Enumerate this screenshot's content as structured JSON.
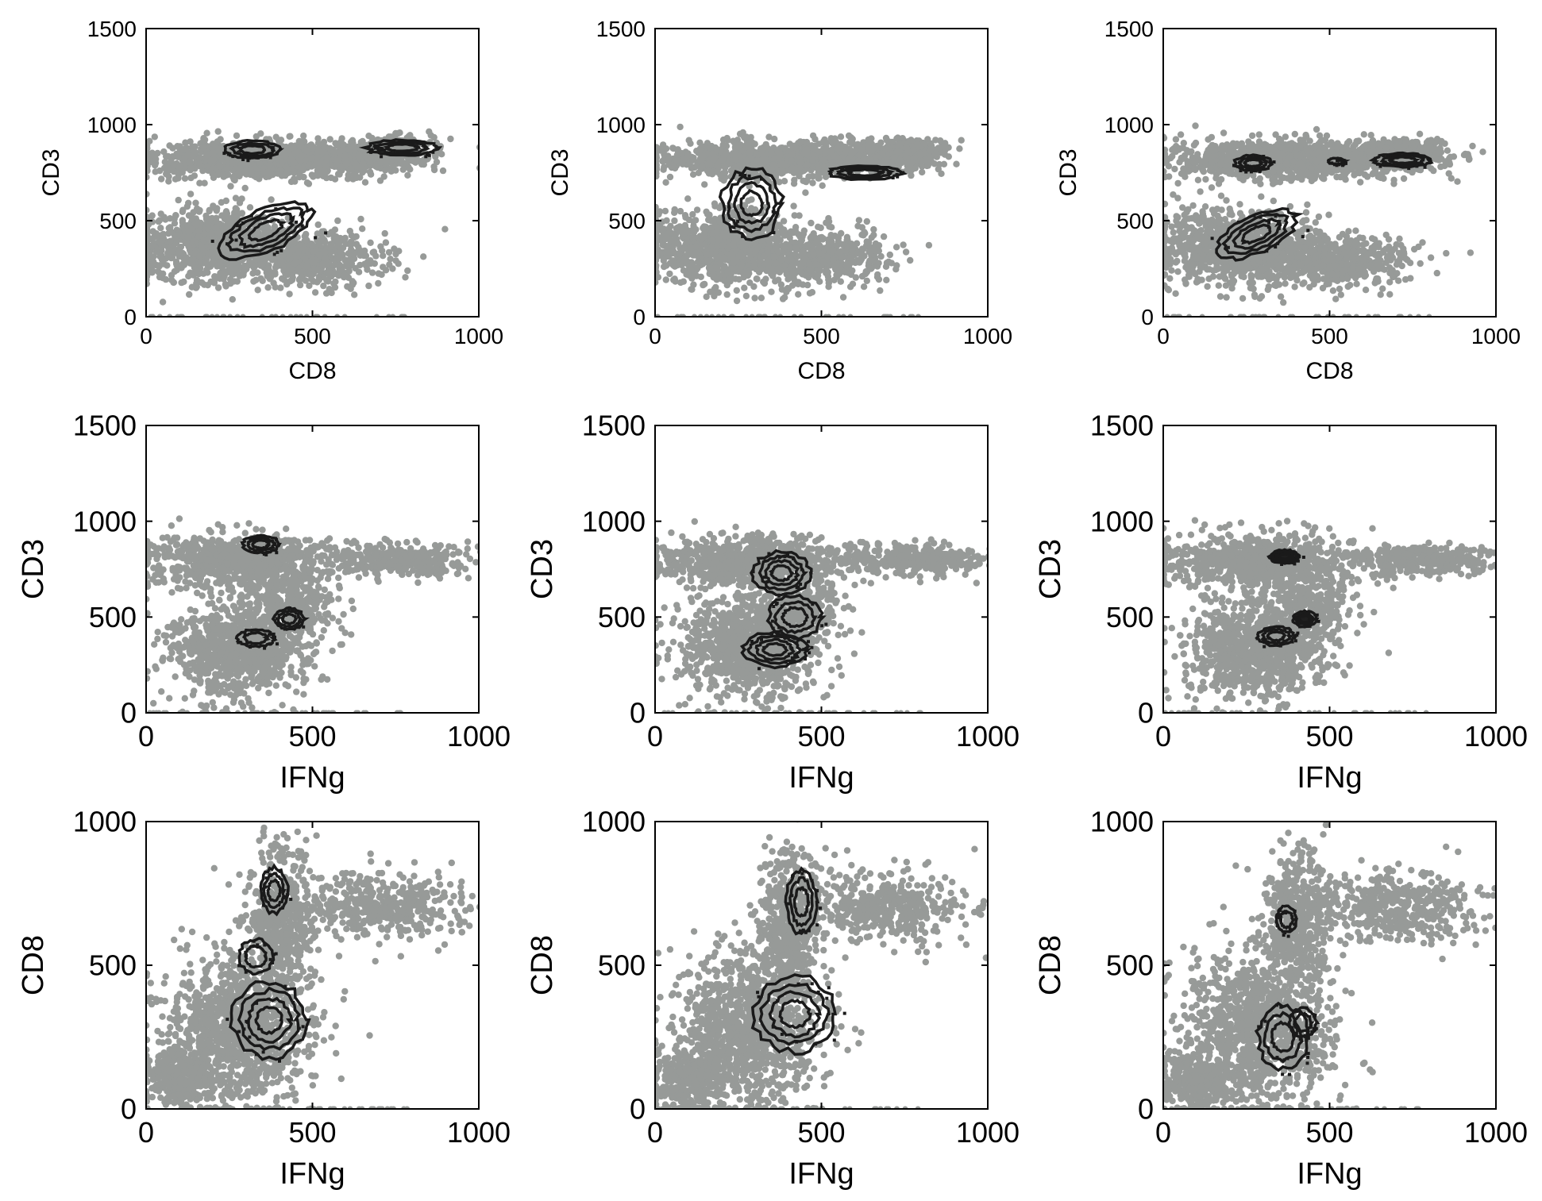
{
  "figure": {
    "background": "#ffffff",
    "point_color": "#979a98",
    "contour_color": "#1a1a1a"
  },
  "chart_data": [
    {
      "type": "scatter",
      "row": 0,
      "col": 0,
      "xlabel": "CD8",
      "ylabel": "CD3",
      "xlim": [
        0,
        1000
      ],
      "ylim": [
        0,
        1500
      ],
      "xticks": [
        "0",
        "500",
        "1000"
      ],
      "yticks": [
        "0",
        "500",
        "1000",
        "1500"
      ],
      "point_clouds": [
        {
          "cx": 300,
          "cy": 820,
          "rx": 270,
          "ry": 90,
          "n": 700
        },
        {
          "cx": 560,
          "cy": 820,
          "rx": 260,
          "ry": 80,
          "n": 500
        },
        {
          "cx": 200,
          "cy": 370,
          "rx": 210,
          "ry": 170,
          "n": 900
        },
        {
          "cx": 500,
          "cy": 300,
          "rx": 200,
          "ry": 130,
          "n": 500
        },
        {
          "cx": 740,
          "cy": 870,
          "rx": 110,
          "ry": 60,
          "n": 250
        }
      ],
      "contours": [
        {
          "cx": 320,
          "cy": 870,
          "rx": 85,
          "ry": 45,
          "levels": 3
        },
        {
          "cx": 770,
          "cy": 880,
          "rx": 105,
          "ry": 40,
          "levels": 3
        },
        {
          "cx": 360,
          "cy": 450,
          "rx": 150,
          "ry": 110,
          "levels": 4,
          "rot": -25
        }
      ]
    },
    {
      "type": "scatter",
      "row": 0,
      "col": 1,
      "xlabel": "CD8",
      "ylabel": "CD3",
      "xlim": [
        0,
        1000
      ],
      "ylim": [
        0,
        1500
      ],
      "xticks": [
        "0",
        "500",
        "1000"
      ],
      "yticks": [
        "0",
        "500",
        "1000",
        "1500"
      ],
      "point_clouds": [
        {
          "cx": 300,
          "cy": 820,
          "rx": 270,
          "ry": 90,
          "n": 700
        },
        {
          "cx": 560,
          "cy": 820,
          "rx": 260,
          "ry": 80,
          "n": 500
        },
        {
          "cx": 200,
          "cy": 370,
          "rx": 210,
          "ry": 170,
          "n": 900
        },
        {
          "cx": 500,
          "cy": 300,
          "rx": 200,
          "ry": 130,
          "n": 500
        },
        {
          "cx": 760,
          "cy": 860,
          "rx": 110,
          "ry": 60,
          "n": 250
        }
      ],
      "contours": [
        {
          "cx": 290,
          "cy": 590,
          "rx": 90,
          "ry": 180,
          "levels": 4
        },
        {
          "cx": 630,
          "cy": 750,
          "rx": 110,
          "ry": 35,
          "levels": 3
        }
      ]
    },
    {
      "type": "scatter",
      "row": 0,
      "col": 2,
      "xlabel": "CD8",
      "ylabel": "CD3",
      "xlim": [
        0,
        1000
      ],
      "ylim": [
        0,
        1500
      ],
      "xticks": [
        "0",
        "500",
        "1000"
      ],
      "yticks": [
        "0",
        "500",
        "1000",
        "1500"
      ],
      "point_clouds": [
        {
          "cx": 300,
          "cy": 820,
          "rx": 270,
          "ry": 90,
          "n": 700
        },
        {
          "cx": 560,
          "cy": 820,
          "rx": 260,
          "ry": 80,
          "n": 500
        },
        {
          "cx": 200,
          "cy": 370,
          "rx": 210,
          "ry": 170,
          "n": 900
        },
        {
          "cx": 500,
          "cy": 300,
          "rx": 200,
          "ry": 130,
          "n": 500
        },
        {
          "cx": 740,
          "cy": 860,
          "rx": 110,
          "ry": 60,
          "n": 250
        }
      ],
      "contours": [
        {
          "cx": 270,
          "cy": 800,
          "rx": 55,
          "ry": 40,
          "levels": 3
        },
        {
          "cx": 520,
          "cy": 810,
          "rx": 25,
          "ry": 15,
          "levels": 1
        },
        {
          "cx": 720,
          "cy": 815,
          "rx": 85,
          "ry": 35,
          "levels": 3
        },
        {
          "cx": 280,
          "cy": 430,
          "rx": 130,
          "ry": 95,
          "levels": 4,
          "rot": -25
        }
      ]
    },
    {
      "type": "scatter",
      "row": 1,
      "col": 0,
      "xlabel": "IFNg",
      "ylabel": "CD3",
      "xlim": [
        0,
        1000
      ],
      "ylim": [
        0,
        1500
      ],
      "xticks": [
        "0",
        "500",
        "1000"
      ],
      "yticks": [
        "0",
        "500",
        "1000",
        "1500"
      ],
      "point_clouds": [
        {
          "cx": 280,
          "cy": 790,
          "rx": 260,
          "ry": 120,
          "n": 800
        },
        {
          "cx": 780,
          "cy": 800,
          "rx": 200,
          "ry": 70,
          "n": 350
        },
        {
          "cx": 280,
          "cy": 330,
          "rx": 190,
          "ry": 230,
          "n": 900
        },
        {
          "cx": 440,
          "cy": 560,
          "rx": 120,
          "ry": 180,
          "n": 300
        }
      ],
      "contours": [
        {
          "cx": 345,
          "cy": 880,
          "rx": 55,
          "ry": 45,
          "levels": 3
        },
        {
          "cx": 430,
          "cy": 490,
          "rx": 45,
          "ry": 55,
          "levels": 3
        },
        {
          "cx": 330,
          "cy": 390,
          "rx": 55,
          "ry": 45,
          "levels": 2
        }
      ]
    },
    {
      "type": "scatter",
      "row": 1,
      "col": 1,
      "xlabel": "IFNg",
      "ylabel": "CD3",
      "xlim": [
        0,
        1000
      ],
      "ylim": [
        0,
        1500
      ],
      "xticks": [
        "0",
        "500",
        "1000"
      ],
      "yticks": [
        "0",
        "500",
        "1000",
        "1500"
      ],
      "point_clouds": [
        {
          "cx": 280,
          "cy": 790,
          "rx": 260,
          "ry": 120,
          "n": 800
        },
        {
          "cx": 780,
          "cy": 800,
          "rx": 200,
          "ry": 70,
          "n": 350
        },
        {
          "cx": 280,
          "cy": 330,
          "rx": 190,
          "ry": 230,
          "n": 900
        },
        {
          "cx": 440,
          "cy": 560,
          "rx": 120,
          "ry": 180,
          "n": 300
        }
      ],
      "contours": [
        {
          "cx": 380,
          "cy": 730,
          "rx": 85,
          "ry": 110,
          "levels": 4
        },
        {
          "cx": 420,
          "cy": 500,
          "rx": 80,
          "ry": 110,
          "levels": 3
        },
        {
          "cx": 360,
          "cy": 330,
          "rx": 95,
          "ry": 90,
          "levels": 4
        }
      ]
    },
    {
      "type": "scatter",
      "row": 1,
      "col": 2,
      "xlabel": "IFNg",
      "ylabel": "CD3",
      "xlim": [
        0,
        1000
      ],
      "ylim": [
        0,
        1500
      ],
      "xticks": [
        "0",
        "500",
        "1000"
      ],
      "yticks": [
        "0",
        "500",
        "1000",
        "1500"
      ],
      "point_clouds": [
        {
          "cx": 280,
          "cy": 790,
          "rx": 260,
          "ry": 120,
          "n": 800
        },
        {
          "cx": 780,
          "cy": 800,
          "rx": 200,
          "ry": 70,
          "n": 350
        },
        {
          "cx": 280,
          "cy": 330,
          "rx": 190,
          "ry": 230,
          "n": 900
        },
        {
          "cx": 440,
          "cy": 560,
          "rx": 120,
          "ry": 180,
          "n": 300
        }
      ],
      "contours": [
        {
          "cx": 365,
          "cy": 815,
          "rx": 45,
          "ry": 35,
          "levels": 4,
          "filled": true
        },
        {
          "cx": 425,
          "cy": 490,
          "rx": 35,
          "ry": 40,
          "levels": 3,
          "filled": true
        },
        {
          "cx": 340,
          "cy": 400,
          "rx": 55,
          "ry": 50,
          "levels": 3
        }
      ]
    },
    {
      "type": "scatter",
      "row": 2,
      "col": 0,
      "xlabel": "IFNg",
      "ylabel": "CD8",
      "xlim": [
        0,
        1000
      ],
      "ylim": [
        0,
        1000
      ],
      "xticks": [
        "0",
        "500",
        "1000"
      ],
      "yticks": [
        "0",
        "500",
        "1000"
      ],
      "point_clouds": [
        {
          "cx": 280,
          "cy": 280,
          "rx": 200,
          "ry": 240,
          "n": 1100
        },
        {
          "cx": 400,
          "cy": 650,
          "rx": 90,
          "ry": 220,
          "n": 500
        },
        {
          "cx": 700,
          "cy": 700,
          "rx": 240,
          "ry": 110,
          "n": 450
        },
        {
          "cx": 100,
          "cy": 100,
          "rx": 100,
          "ry": 100,
          "n": 300
        }
      ],
      "contours": [
        {
          "cx": 385,
          "cy": 760,
          "rx": 40,
          "ry": 80,
          "levels": 3
        },
        {
          "cx": 370,
          "cy": 310,
          "rx": 110,
          "ry": 130,
          "levels": 4
        },
        {
          "cx": 330,
          "cy": 530,
          "rx": 50,
          "ry": 60,
          "levels": 2
        }
      ]
    },
    {
      "type": "scatter",
      "row": 2,
      "col": 1,
      "xlabel": "IFNg",
      "ylabel": "CD8",
      "xlim": [
        0,
        1000
      ],
      "ylim": [
        0,
        1000
      ],
      "xticks": [
        "0",
        "500",
        "1000"
      ],
      "yticks": [
        "0",
        "500",
        "1000"
      ],
      "point_clouds": [
        {
          "cx": 280,
          "cy": 280,
          "rx": 200,
          "ry": 240,
          "n": 1100
        },
        {
          "cx": 400,
          "cy": 650,
          "rx": 90,
          "ry": 220,
          "n": 500
        },
        {
          "cx": 700,
          "cy": 700,
          "rx": 240,
          "ry": 110,
          "n": 450
        },
        {
          "cx": 100,
          "cy": 100,
          "rx": 100,
          "ry": 100,
          "n": 300
        }
      ],
      "contours": [
        {
          "cx": 440,
          "cy": 720,
          "rx": 45,
          "ry": 110,
          "levels": 3
        },
        {
          "cx": 420,
          "cy": 330,
          "rx": 125,
          "ry": 130,
          "levels": 4
        }
      ]
    },
    {
      "type": "scatter",
      "row": 2,
      "col": 2,
      "xlabel": "IFNg",
      "ylabel": "CD8",
      "xlim": [
        0,
        1000
      ],
      "ylim": [
        0,
        1000
      ],
      "xticks": [
        "0",
        "500",
        "1000"
      ],
      "yticks": [
        "0",
        "500",
        "1000"
      ],
      "point_clouds": [
        {
          "cx": 280,
          "cy": 280,
          "rx": 200,
          "ry": 240,
          "n": 1100
        },
        {
          "cx": 400,
          "cy": 650,
          "rx": 90,
          "ry": 220,
          "n": 500
        },
        {
          "cx": 700,
          "cy": 700,
          "rx": 240,
          "ry": 110,
          "n": 450
        },
        {
          "cx": 100,
          "cy": 100,
          "rx": 100,
          "ry": 100,
          "n": 300
        }
      ],
      "contours": [
        {
          "cx": 370,
          "cy": 660,
          "rx": 30,
          "ry": 45,
          "levels": 2
        },
        {
          "cx": 360,
          "cy": 250,
          "rx": 75,
          "ry": 110,
          "levels": 3
        },
        {
          "cx": 420,
          "cy": 300,
          "rx": 40,
          "ry": 50,
          "levels": 2
        }
      ]
    }
  ]
}
